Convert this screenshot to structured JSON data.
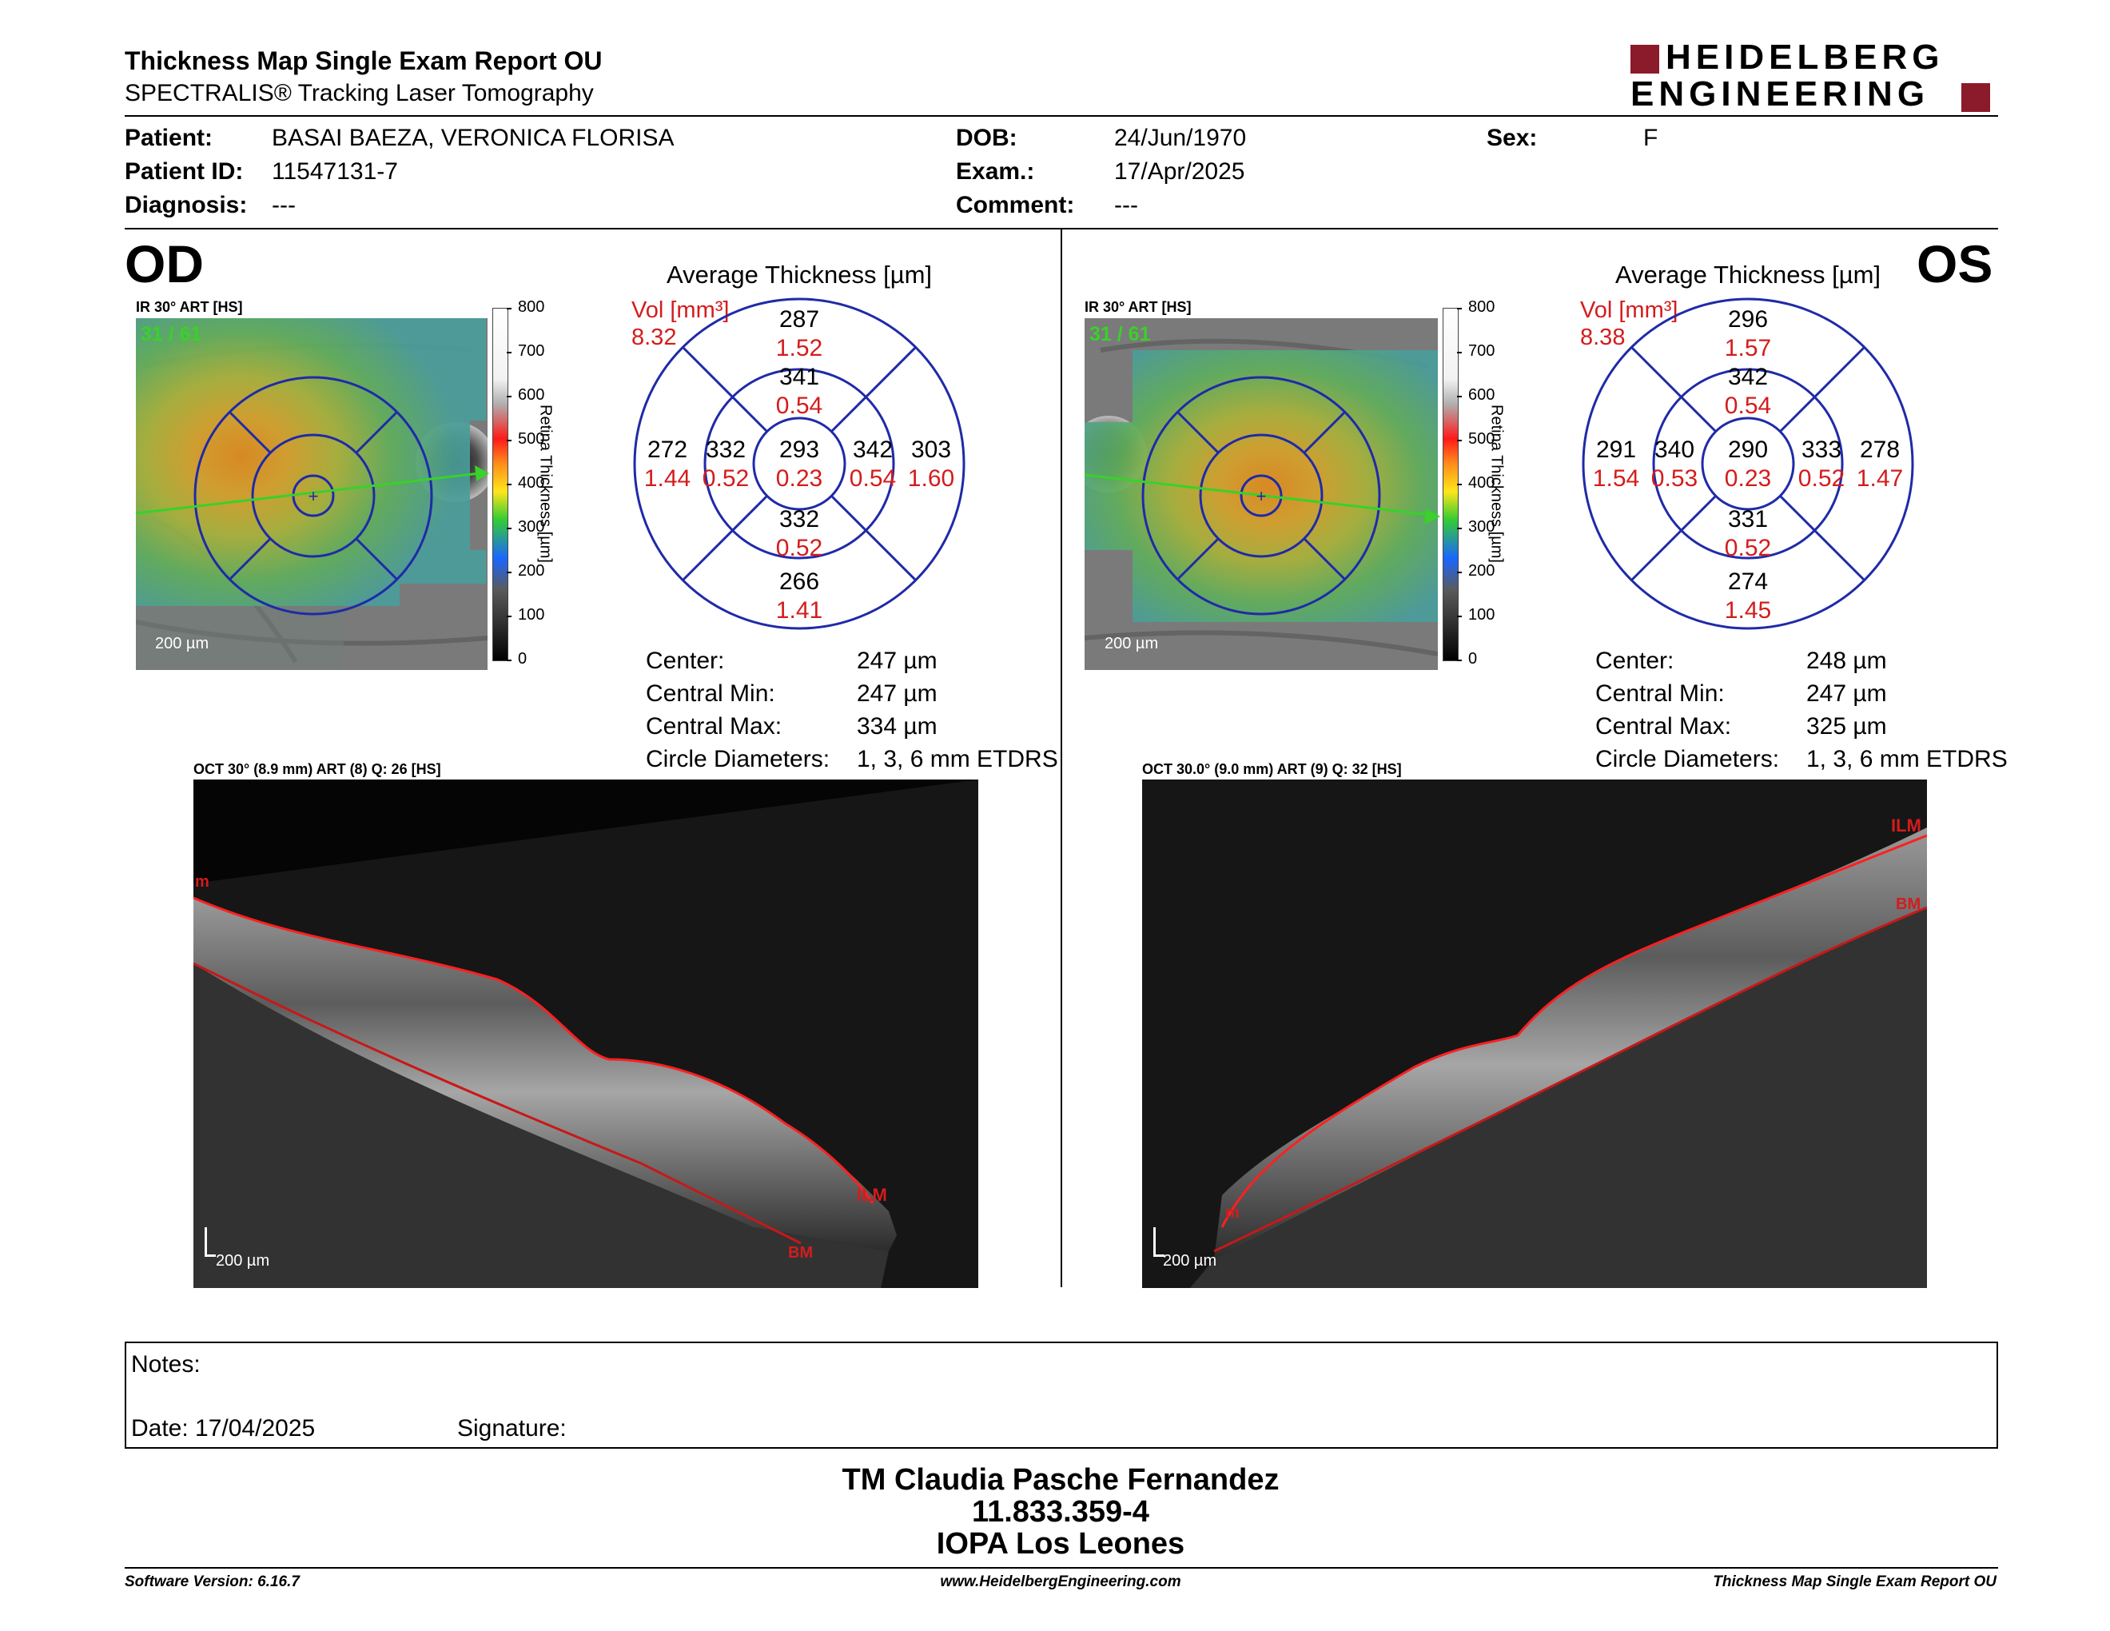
{
  "header": {
    "title": "Thickness Map Single Exam Report OU",
    "subtitle": "SPECTRALIS® Tracking Laser Tomography",
    "logo_line1": "HEIDELBERG",
    "logo_line2": "ENGINEERING",
    "logo_color": "#8b1a2b"
  },
  "patient": {
    "patient_label": "Patient:",
    "patient_value": "BASAI BAEZA, VERONICA FLORISA",
    "id_label": "Patient ID:",
    "id_value": "11547131-7",
    "diagnosis_label": "Diagnosis:",
    "diagnosis_value": "---",
    "dob_label": "DOB:",
    "dob_value": "24/Jun/1970",
    "exam_label": "Exam.:",
    "exam_value": "17/Apr/2025",
    "comment_label": "Comment:",
    "comment_value": "---",
    "sex_label": "Sex:",
    "sex_value": "F"
  },
  "od": {
    "eye": "OD",
    "ir_label": "IR 30° ART [HS]",
    "frames": "31 / 61",
    "scale": "200 µm",
    "avg_title": "Average Thickness [µm]",
    "vol_label": "Vol [mm³]",
    "vol_value": "8.32",
    "grid": {
      "center": {
        "t": "293",
        "v": "0.23"
      },
      "sup_in": {
        "t": "341",
        "v": "0.54"
      },
      "sup_out": {
        "t": "287",
        "v": "1.52"
      },
      "inf_in": {
        "t": "332",
        "v": "0.52"
      },
      "inf_out": {
        "t": "266",
        "v": "1.41"
      },
      "left_in": {
        "t": "332",
        "v": "0.52"
      },
      "left_out": {
        "t": "272",
        "v": "1.44"
      },
      "right_in": {
        "t": "342",
        "v": "0.54"
      },
      "right_out": {
        "t": "303",
        "v": "1.60"
      }
    },
    "center_label": "Center:",
    "center_value": "247 µm",
    "cmin_label": "Central Min:",
    "cmin_value": "247 µm",
    "cmax_label": "Central Max:",
    "cmax_value": "334 µm",
    "circ_label": "Circle Diameters:",
    "circ_value": "1, 3, 6 mm ETDRS",
    "oct_label": "OCT 30° (8.9 mm) ART (8) Q: 26 [HS]",
    "oct_scale": "200 µm",
    "ilm": "ILM",
    "bm": "BM",
    "m": "m"
  },
  "os": {
    "eye": "OS",
    "ir_label": "IR 30° ART [HS]",
    "frames": "31 / 61",
    "scale": "200 µm",
    "avg_title": "Average Thickness [µm]",
    "vol_label": "Vol [mm³]",
    "vol_value": "8.38",
    "grid": {
      "center": {
        "t": "290",
        "v": "0.23"
      },
      "sup_in": {
        "t": "342",
        "v": "0.54"
      },
      "sup_out": {
        "t": "296",
        "v": "1.57"
      },
      "inf_in": {
        "t": "331",
        "v": "0.52"
      },
      "inf_out": {
        "t": "274",
        "v": "1.45"
      },
      "left_in": {
        "t": "340",
        "v": "0.53"
      },
      "left_out": {
        "t": "291",
        "v": "1.54"
      },
      "right_in": {
        "t": "333",
        "v": "0.52"
      },
      "right_out": {
        "t": "278",
        "v": "1.47"
      }
    },
    "center_label": "Center:",
    "center_value": "248 µm",
    "cmin_label": "Central Min:",
    "cmin_value": "247 µm",
    "cmax_label": "Central Max:",
    "cmax_value": "325 µm",
    "circ_label": "Circle Diameters:",
    "circ_value": "1, 3, 6 mm ETDRS",
    "oct_label": "OCT 30.0° (9.0 mm) ART (9) Q: 32 [HS]",
    "oct_scale": "200 µm",
    "ilm": "ILM",
    "bm": "BM",
    "m": "m"
  },
  "colorbar": {
    "ticks": [
      "800",
      "700",
      "600",
      "500",
      "400",
      "300",
      "200",
      "100",
      "0"
    ],
    "label": "Retina  Thickness [µm]"
  },
  "notes": {
    "notes_label": "Notes:",
    "date_label": "Date: 17/04/2025",
    "signature_label": "Signature:"
  },
  "signature_block": {
    "name": "TM Claudia Pasche Fernandez",
    "id": "11.833.359-4",
    "org": "IOPA Los Leones"
  },
  "footer": {
    "software": "Software Version: 6.16.7",
    "website": "www.HeidelbergEngineering.com",
    "report": "Thickness Map Single Exam Report OU"
  },
  "colors": {
    "grid_blue": "#1f2aa8",
    "volume_red": "#d41c1c",
    "frame_green": "#39d12a"
  }
}
